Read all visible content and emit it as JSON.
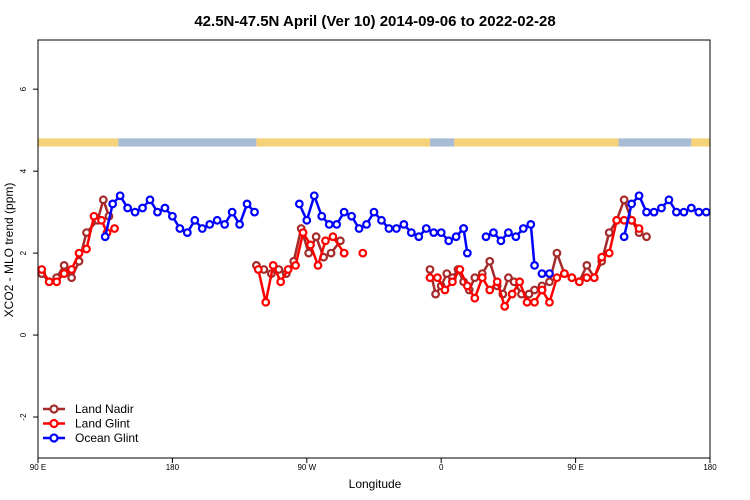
{
  "chart_data": {
    "type": "line",
    "title": "42.5N-47.5N April (Ver 10)   2014-09-06 to 2022-02-28",
    "xlabel": "Longitude",
    "ylabel": "XCO2 - MLO trend (ppm)",
    "xlim": [
      90,
      450
    ],
    "ylim": [
      -3,
      7.2
    ],
    "x_ticks": [
      {
        "value": 90,
        "label": "90 E"
      },
      {
        "value": 162,
        "label": "180"
      },
      {
        "value": 234,
        "label": "90 W"
      },
      {
        "value": 306,
        "label": "0"
      },
      {
        "value": 378,
        "label": "90 E"
      },
      {
        "value": 450,
        "label": "180"
      }
    ],
    "y_ticks": [
      {
        "value": -2,
        "label": "-2"
      },
      {
        "value": 0,
        "label": "0"
      },
      {
        "value": 2,
        "label": "2"
      },
      {
        "value": 4,
        "label": "4"
      },
      {
        "value": 6,
        "label": "6"
      }
    ],
    "grid": false,
    "legend_position": "bottom-left",
    "land_ocean_band": {
      "y_range": [
        4.6,
        4.8
      ],
      "land_color": "#f5d27a",
      "ocean_color": "#a8bcd6",
      "segments": [
        {
          "from": 90,
          "to": 133,
          "kind": "land"
        },
        {
          "from": 133,
          "to": 207,
          "kind": "ocean"
        },
        {
          "from": 207,
          "to": 300,
          "kind": "land"
        },
        {
          "from": 300,
          "to": 313,
          "kind": "ocean"
        },
        {
          "from": 313,
          "to": 346,
          "kind": "land"
        },
        {
          "from": 346,
          "to": 401,
          "kind": "land"
        },
        {
          "from": 401,
          "to": 440,
          "kind": "ocean"
        },
        {
          "from": 440,
          "to": 450,
          "kind": "land"
        }
      ]
    },
    "series": [
      {
        "name": "Land Nadir",
        "color": "#a52a2a",
        "segments": [
          {
            "x": [
              92,
              96,
              100,
              104,
              108,
              112,
              116,
              122,
              125,
              128
            ],
            "y": [
              1.5,
              1.3,
              1.4,
              1.7,
              1.4,
              1.8,
              2.5,
              2.8,
              3.3,
              2.9
            ]
          },
          {
            "x": [
              207,
              211,
              215,
              219,
              223,
              227,
              231,
              235,
              239,
              243,
              247,
              252
            ],
            "y": [
              1.7,
              1.6,
              1.5,
              1.6,
              1.5,
              1.8,
              2.6,
              2.0,
              2.4,
              1.9,
              2.0,
              2.3
            ]
          },
          {
            "x": [
              300,
              303,
              306,
              309,
              312,
              315,
              318,
              321,
              324,
              328,
              332,
              336,
              339,
              342,
              345,
              349,
              353,
              356,
              360
            ],
            "y": [
              1.6,
              1.0,
              1.2,
              1.5,
              1.4,
              1.6,
              1.3,
              1.1,
              1.4,
              1.5,
              1.8,
              1.2,
              1.0,
              1.4,
              1.3,
              1.0,
              1.0,
              1.1,
              1.2
            ]
          },
          {
            "x": [
              364,
              368,
              372,
              376,
              380,
              384,
              388,
              392,
              396,
              400,
              404,
              408,
              412,
              416
            ],
            "y": [
              1.3,
              2.0,
              1.5,
              1.4,
              1.3,
              1.7,
              1.4,
              1.8,
              2.5,
              2.8,
              3.3,
              2.8,
              2.5,
              2.4
            ]
          }
        ]
      },
      {
        "name": "Land Glint",
        "color": "#ff0000",
        "segments": [
          {
            "x": [
              92,
              96,
              100,
              104,
              108,
              112,
              116,
              120,
              124,
              127,
              131
            ],
            "y": [
              1.6,
              1.3,
              1.3,
              1.5,
              1.6,
              2.0,
              2.1,
              2.9,
              2.8,
              2.5,
              2.6
            ]
          },
          {
            "x": [
              208,
              212,
              216,
              220,
              224,
              228,
              232,
              236,
              240,
              244,
              248,
              254
            ],
            "y": [
              1.6,
              0.8,
              1.7,
              1.3,
              1.6,
              1.7,
              2.5,
              2.2,
              1.7,
              2.3,
              2.4,
              2.0
            ]
          },
          {
            "x": [
              300,
              304,
              308,
              312,
              316,
              320,
              324,
              328,
              332,
              336,
              340,
              344,
              348,
              352,
              356,
              360
            ],
            "y": [
              1.4,
              1.4,
              1.1,
              1.3,
              1.6,
              1.2,
              0.9,
              1.4,
              1.1,
              1.3,
              0.7,
              1.0,
              1.3,
              0.8,
              0.8,
              1.1
            ]
          },
          {
            "x": [
              360,
              364,
              368,
              372,
              376,
              380,
              384,
              388,
              392,
              396,
              400,
              404,
              408,
              412
            ],
            "y": [
              1.1,
              0.8,
              1.4,
              1.5,
              1.4,
              1.3,
              1.4,
              1.4,
              1.9,
              2.0,
              2.8,
              2.8,
              2.8,
              2.6
            ]
          }
        ]
      },
      {
        "name": "Ocean Glint",
        "color": "#0000ff",
        "segments": [
          {
            "x": [
              126,
              130,
              134,
              138,
              142,
              146,
              150,
              154,
              158,
              162,
              166,
              170,
              174,
              178,
              182,
              186,
              190,
              194,
              198,
              202,
              206
            ],
            "y": [
              2.4,
              3.2,
              3.4,
              3.1,
              3.0,
              3.1,
              3.3,
              3.0,
              3.1,
              2.9,
              2.6,
              2.5,
              2.8,
              2.6,
              2.7,
              2.8,
              2.7,
              3.0,
              2.7,
              3.2,
              3.0
            ]
          },
          {
            "x": [
              230,
              234,
              238,
              242,
              246,
              250,
              254,
              258,
              262,
              266,
              270,
              274,
              278,
              282,
              286,
              290,
              294,
              298,
              302,
              306,
              310,
              314,
              318
            ],
            "y": [
              3.2,
              2.8,
              3.4,
              2.9,
              2.7,
              2.7,
              3.0,
              2.9,
              2.6,
              2.7,
              3.0,
              2.8,
              2.6,
              2.6,
              2.7,
              2.5,
              2.4,
              2.6,
              2.5,
              2.5,
              2.3,
              2.4,
              2.6
            ]
          },
          {
            "x": [
              318,
              320
            ],
            "y": [
              2.6,
              2.0
            ]
          },
          {
            "x": [
              330,
              334,
              338,
              342,
              346,
              350,
              354,
              356
            ],
            "y": [
              2.4,
              2.5,
              2.3,
              2.5,
              2.4,
              2.6,
              2.7,
              1.7
            ]
          },
          {
            "x": [
              360,
              364
            ],
            "y": [
              1.5,
              1.5
            ]
          },
          {
            "x": [
              404,
              408,
              412,
              416,
              420,
              424,
              428,
              432,
              436,
              440,
              444,
              448
            ],
            "y": [
              2.4,
              3.2,
              3.4,
              3.0,
              3.0,
              3.1,
              3.3,
              3.0,
              3.0,
              3.1,
              3.0,
              3.0
            ]
          }
        ]
      }
    ],
    "isolated_points": [
      {
        "series": "Land Glint",
        "x": 264,
        "y": 2.0
      }
    ]
  }
}
